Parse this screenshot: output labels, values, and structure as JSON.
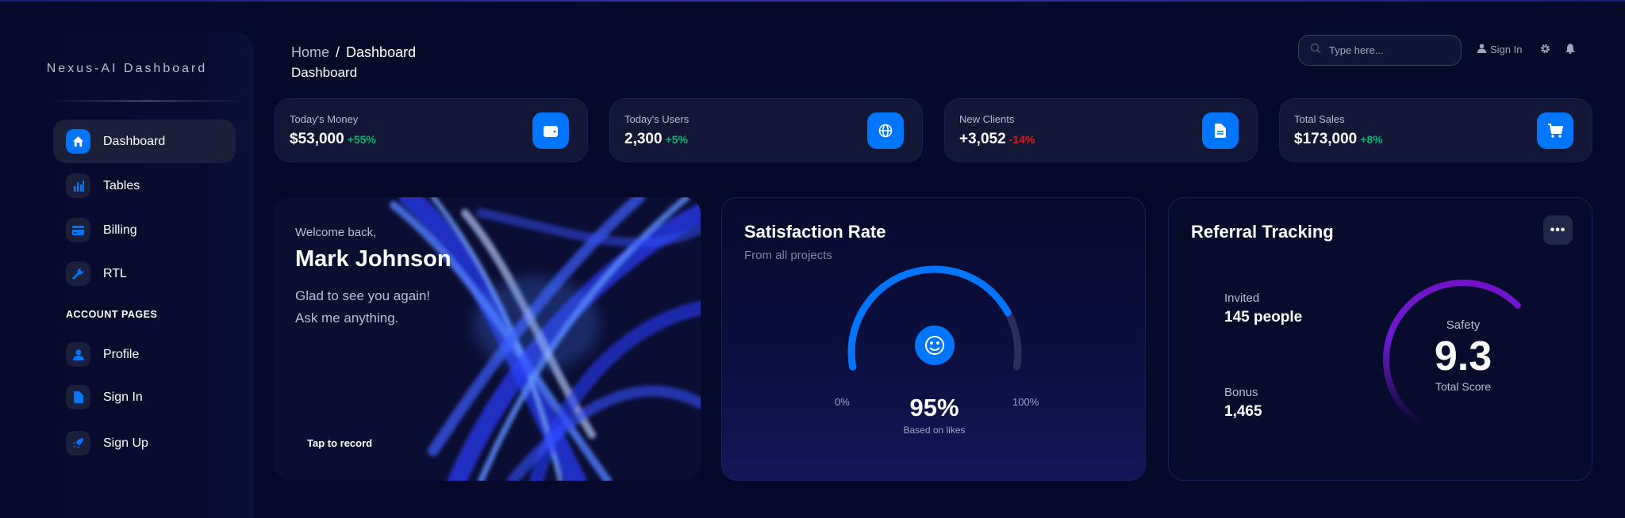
{
  "sidebar": {
    "logo": "Nexus-AI Dashboard",
    "items": [
      {
        "label": "Dashboard",
        "icon": "home-icon",
        "active": true
      },
      {
        "label": "Tables",
        "icon": "bar-chart-icon"
      },
      {
        "label": "Billing",
        "icon": "credit-card-icon"
      },
      {
        "label": "RTL",
        "icon": "wrench-icon"
      }
    ],
    "section_label": "ACCOUNT PAGES",
    "account_items": [
      {
        "label": "Profile",
        "icon": "user-icon"
      },
      {
        "label": "Sign In",
        "icon": "document-icon"
      },
      {
        "label": "Sign Up",
        "icon": "rocket-icon"
      }
    ]
  },
  "header": {
    "breadcrumb": {
      "home": "Home",
      "separator": "/",
      "current": "Dashboard"
    },
    "title": "Dashboard",
    "search_placeholder": "Type here...",
    "sign_in": "Sign In"
  },
  "stats": [
    {
      "label": "Today's Money",
      "value": "$53,000",
      "change": "+55%",
      "trend": "up",
      "icon": "wallet-icon"
    },
    {
      "label": "Today's Users",
      "value": "2,300",
      "change": "+5%",
      "trend": "up",
      "icon": "globe-icon"
    },
    {
      "label": "New Clients",
      "value": "+3,052",
      "change": "-14%",
      "trend": "down",
      "icon": "document-icon"
    },
    {
      "label": "Total Sales",
      "value": "$173,000",
      "change": "+8%",
      "trend": "up",
      "icon": "cart-icon"
    }
  ],
  "welcome": {
    "greeting": "Welcome back,",
    "name": "Mark Johnson",
    "line1": "Glad to see you again!",
    "line2": "Ask me anything.",
    "cta": "Tap to record"
  },
  "satisfaction": {
    "title": "Satisfaction Rate",
    "subtitle": "From all projects",
    "min_label": "0%",
    "max_label": "100%",
    "value": "95%",
    "value_fraction": 0.95,
    "caption": "Based on likes"
  },
  "referral": {
    "title": "Referral Tracking",
    "invited_label": "Invited",
    "invited_value": "145 people",
    "bonus_label": "Bonus",
    "bonus_value": "1,465",
    "score_label": "Safety",
    "score": "9.3",
    "score_fraction": 0.93,
    "score_caption": "Total Score"
  },
  "colors": {
    "accent": "#0075ff",
    "up": "#01b574",
    "down": "#e31a1a",
    "purple": "#7313c9",
    "bg": "#060a29"
  }
}
